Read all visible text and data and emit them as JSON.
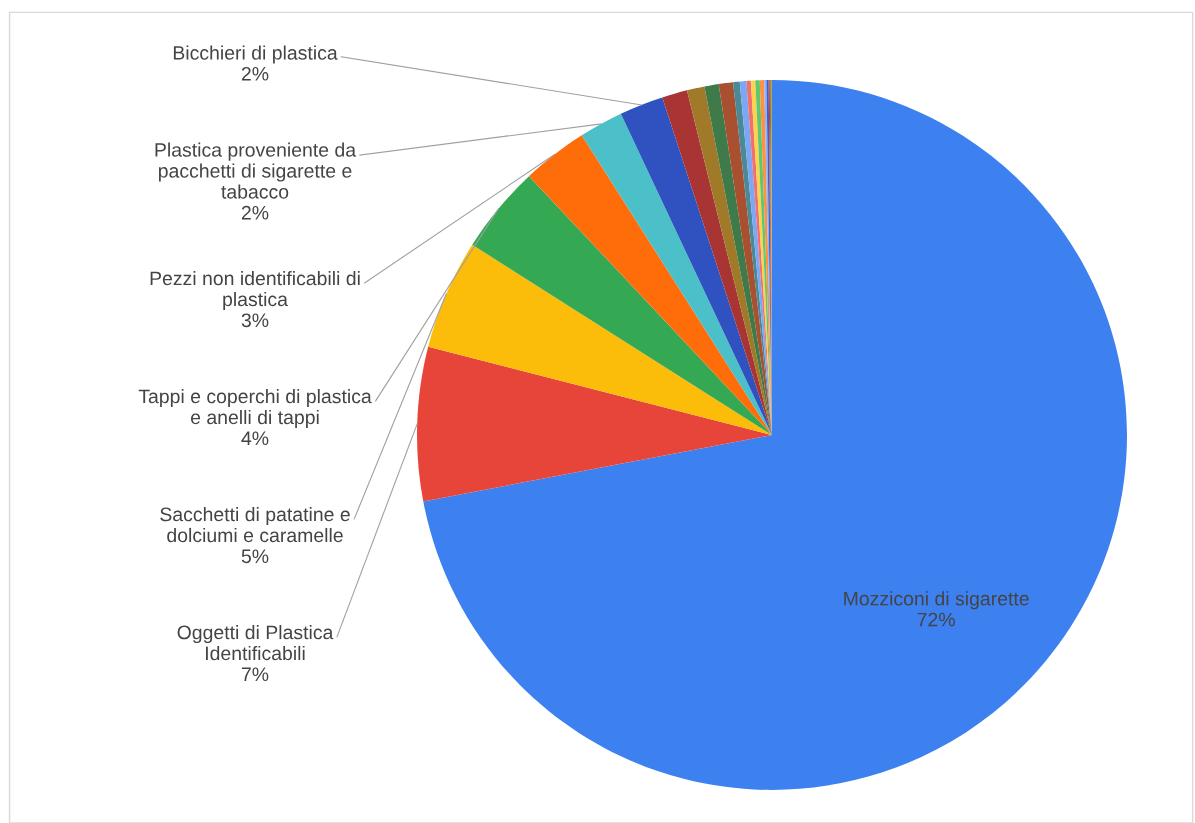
{
  "chart_data": {
    "type": "pie",
    "categories": [
      "Mozziconi di sigarette",
      "Oggetti di Plastica\nIdentificabili",
      "Sacchetti di patatine e\ndolciumi e caramelle",
      "Tappi e coperchi di plastica\ne anelli di tappi",
      "Pezzi non identificabili di\nplastica",
      "Plastica proveniente da\npacchetti di sigarette e\ntabacco",
      "Bicchieri di plastica",
      null,
      null,
      null,
      null,
      null,
      null,
      null,
      null,
      null,
      null,
      null,
      null,
      null,
      null,
      null
    ],
    "values": [
      72,
      7,
      5,
      4,
      3,
      2,
      2,
      1.15,
      0.8,
      0.65,
      0.65,
      0.3,
      0.3,
      0.2,
      0.2,
      0.2,
      0.2,
      0.1,
      0.1,
      0.05,
      0.05,
      0.05
    ],
    "value_labels": [
      "72%",
      "7%",
      "5%",
      "4%",
      "3%",
      "2%",
      "2%",
      null,
      null,
      null,
      null,
      null,
      null,
      null,
      null,
      null,
      null,
      null,
      null,
      null,
      null,
      null
    ],
    "colors": [
      "#3d80f0",
      "#e8453a",
      "#fbbc0a",
      "#34a853",
      "#ff6d0a",
      "#4cc0c8",
      "#2f52c0",
      "#a93434",
      "#a07a28",
      "#3e7a4a",
      "#a8502f",
      "#4a8a96",
      "#7ba7f5",
      "#f07070",
      "#fcd34a",
      "#5cc872",
      "#ff9140",
      "#8ab4f8",
      "#3060e0",
      "#e03030",
      "#40a050",
      "#f09030"
    ],
    "legend": false
  }
}
